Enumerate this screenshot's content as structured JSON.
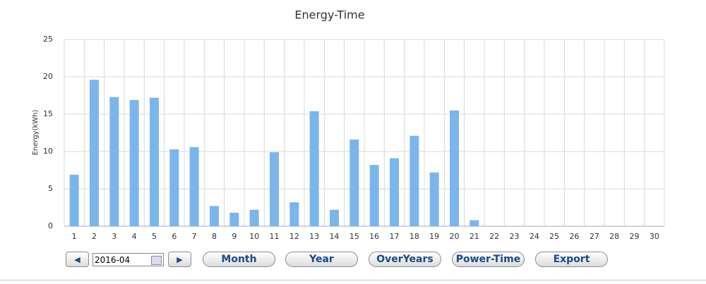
{
  "chart_data": {
    "type": "bar",
    "title": "Energy-Time",
    "y_label": "Energy(kWh)",
    "categories": [
      "1",
      "2",
      "3",
      "4",
      "5",
      "6",
      "7",
      "8",
      "9",
      "10",
      "11",
      "12",
      "13",
      "14",
      "15",
      "16",
      "17",
      "18",
      "19",
      "20",
      "21",
      "22",
      "23",
      "24",
      "25",
      "26",
      "27",
      "28",
      "29",
      "30"
    ],
    "values": [
      6.9,
      19.6,
      17.3,
      16.9,
      17.2,
      10.3,
      10.6,
      2.7,
      1.8,
      2.2,
      9.9,
      3.2,
      15.4,
      2.2,
      11.6,
      8.2,
      9.1,
      12.1,
      7.2,
      15.5,
      0.8,
      0,
      0,
      0,
      0,
      0,
      0,
      0,
      0,
      0
    ],
    "color": "#7cb5ec",
    "ylim": [
      0,
      25
    ],
    "yticks": [
      0,
      5,
      10,
      15,
      20,
      25
    ],
    "grid": true
  },
  "controls": {
    "prev": "◀",
    "date": "2016-04",
    "next": "▶",
    "buttons": [
      "Month",
      "Year",
      "OverYears",
      "Power-Time",
      "Export"
    ]
  }
}
